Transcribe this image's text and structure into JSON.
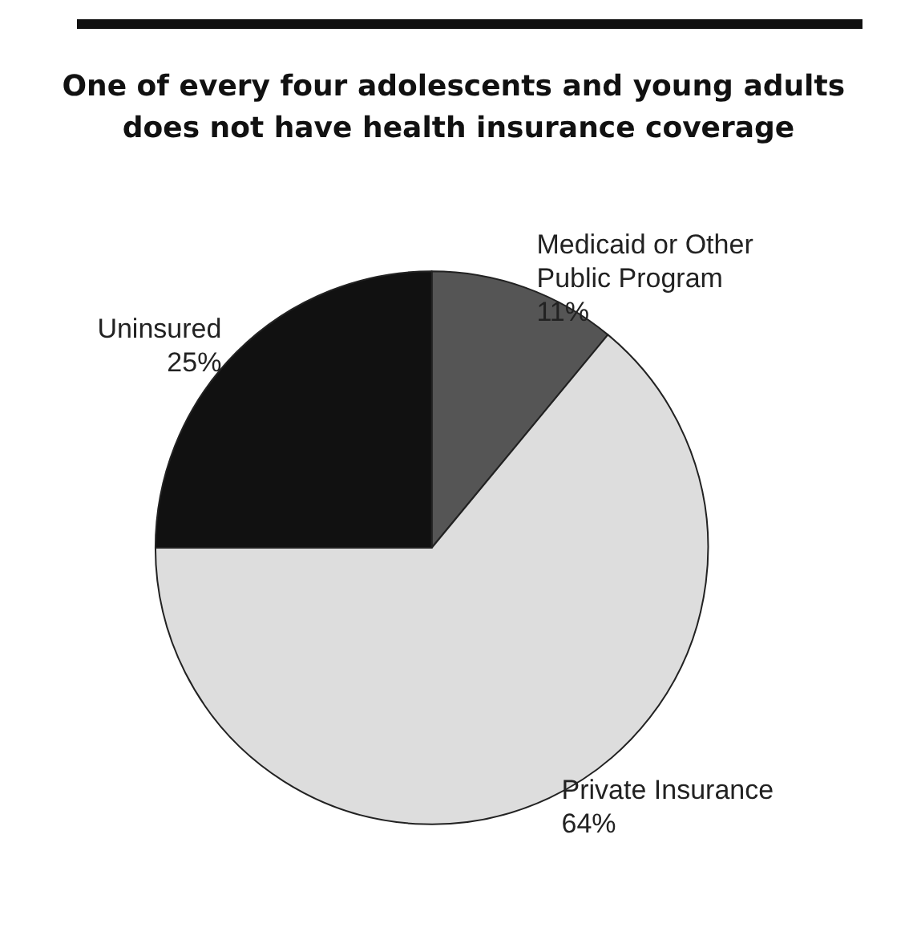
{
  "chart_data": {
    "type": "pie",
    "title": "One of every four adolescents and young adults does not have health insurance coverage",
    "categories": [
      "Medicaid or Other Public Program",
      "Private Insurance",
      "Uninsured"
    ],
    "values": [
      11,
      64,
      25
    ],
    "value_labels": [
      "11%",
      "64%",
      "25%"
    ],
    "colors": [
      "#555555",
      "#dddddd",
      "#111111"
    ],
    "legend": false
  }
}
